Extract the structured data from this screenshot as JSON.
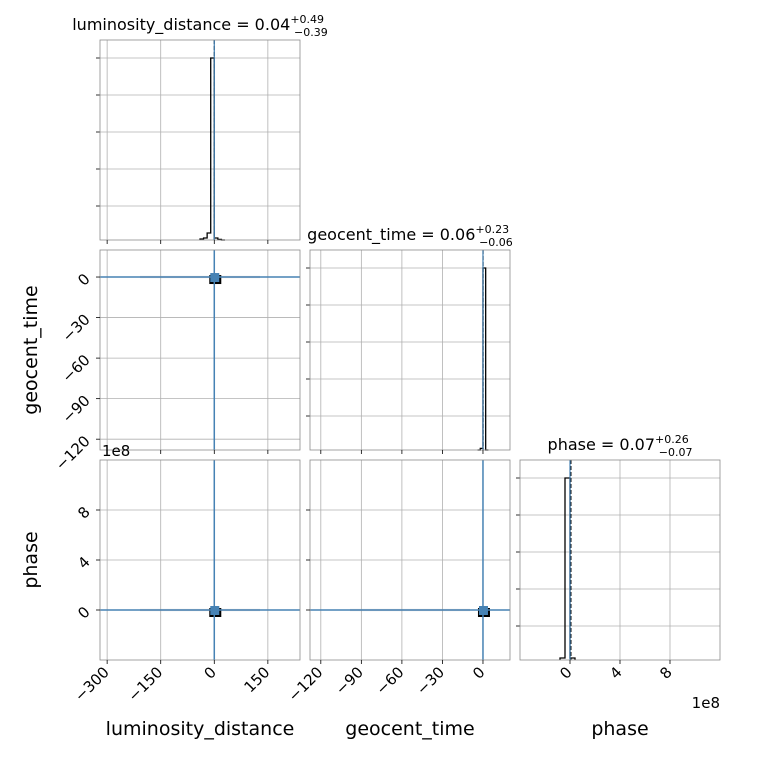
{
  "chart_data": {
    "type": "corner",
    "parameters": [
      {
        "name": "luminosity_distance",
        "label": "luminosity_distance",
        "title": "luminosity_distance = 0.04",
        "title_plus": "+0.49",
        "title_minus": "−0.39",
        "range": [
          -320,
          240
        ],
        "ticks": [
          -300,
          -150,
          0,
          150
        ],
        "tick_labels": [
          "−300",
          "−150",
          "0",
          "150"
        ],
        "offset_text": "",
        "truth": 0,
        "median": 0.04,
        "hist_edges": [
          -40,
          -30,
          -20,
          -10,
          0,
          10,
          20,
          30
        ],
        "hist_counts": [
          0.005,
          0.01,
          0.035,
          0.91,
          0.01,
          0.003,
          0
        ]
      },
      {
        "name": "geocent_time",
        "label": "geocent_time",
        "title": "geocent_time = 0.06",
        "title_plus": "+0.23",
        "title_minus": "−0.06",
        "range": [
          -128,
          20
        ],
        "ticks": [
          -120,
          -90,
          -60,
          -30,
          0
        ],
        "tick_labels": [
          "−120",
          "−90",
          "−60",
          "−30",
          "0"
        ],
        "offset_text": "",
        "truth": 0,
        "median": 0.06,
        "hist_edges": [
          -4,
          -2,
          0,
          2,
          4
        ],
        "hist_counts": [
          0,
          0.008,
          0.9,
          0
        ]
      },
      {
        "name": "phase",
        "label": "phase",
        "title": "phase = 0.07",
        "title_plus": "+0.26",
        "title_minus": "−0.07",
        "range": [
          -4,
          12
        ],
        "ticks": [
          0,
          4,
          8
        ],
        "tick_labels": [
          "0",
          "4",
          "8"
        ],
        "offset_text": "1e8",
        "truth": 0,
        "median": 0.07,
        "hist_edges": [
          -0.8,
          -0.4,
          0,
          0.4
        ],
        "hist_counts": [
          0.01,
          0.9,
          0.01
        ]
      }
    ],
    "colors": {
      "truth": "#4682b4",
      "hist": "#000000",
      "grid": "#b0b0b0"
    }
  }
}
